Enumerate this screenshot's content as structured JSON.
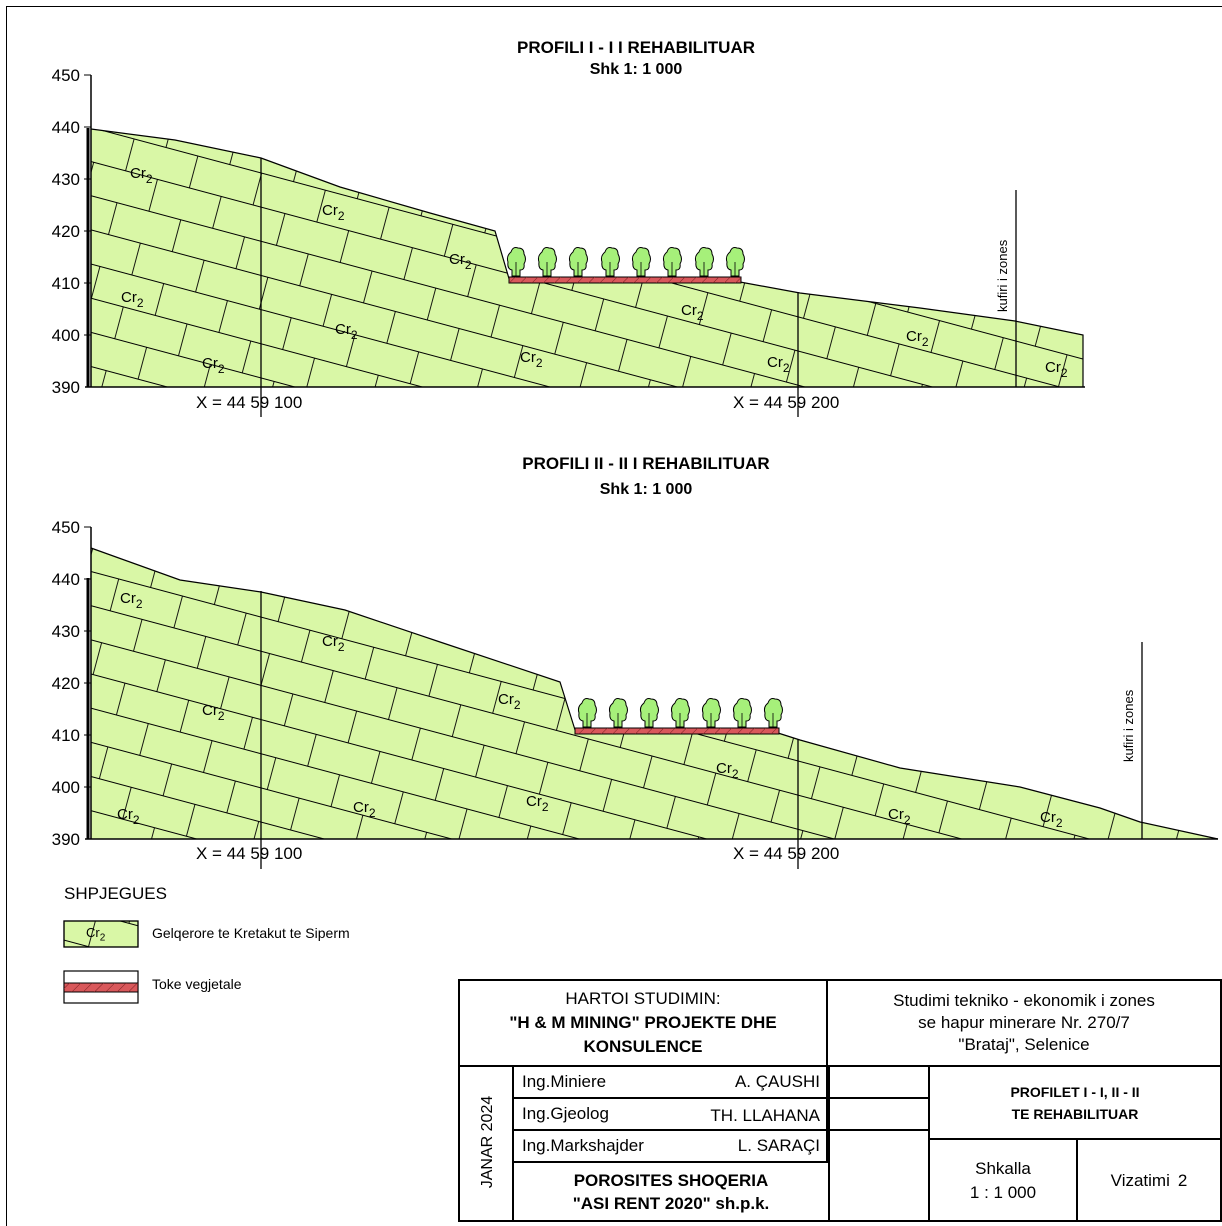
{
  "profiles": [
    {
      "title": "PROFILI I - I I REHABILITUAR",
      "scale": "Shk 1: 1 000",
      "y_ticks": [
        "450",
        "440",
        "430",
        "420",
        "410",
        "400",
        "390"
      ],
      "x_marks": [
        "X = 44 59 100",
        "X = 44 59 200"
      ],
      "zone_label": "kufiri i zones",
      "unit_labels": [
        "Cr2",
        "Cr2",
        "Cr2",
        "Cr2",
        "Cr2",
        "Cr2",
        "Cr2",
        "Cr2",
        "Cr2",
        "Cr2",
        "Cr2",
        "Cr2"
      ],
      "trees": 8
    },
    {
      "title": "PROFILI II - II I REHABILITUAR",
      "scale": "Shk 1: 1 000",
      "y_ticks": [
        "450",
        "440",
        "430",
        "420",
        "410",
        "400",
        "390"
      ],
      "x_marks": [
        "X = 44 59 100",
        "X = 44 59 200"
      ],
      "zone_label": "kufiri i zones",
      "unit_labels": [
        "Cr2",
        "Cr2",
        "Cr2",
        "Cr2",
        "Cr2",
        "Cr2",
        "Cr2",
        "Cr2",
        "Cr2",
        "Cr2",
        "Cr2"
      ],
      "trees": 7
    }
  ],
  "legend": {
    "title": "SHPJEGUES",
    "items": [
      {
        "swatch_label": "Cr2",
        "label": "Gelqerore te Kretakut te Siperm"
      },
      {
        "label": "Toke vegjetale"
      }
    ]
  },
  "title_block": {
    "author_heading": "HARTOI STUDIMIN:",
    "author_company_line1": "\"H & M MINING\" PROJEKTE DHE",
    "author_company_line2": "KONSULENCE",
    "study_line1": "Studimi tekniko - ekonomik i zones",
    "study_line2": "se hapur minerare Nr. 270/7",
    "study_line3": "\"Brataj\", Selenice",
    "date": "JANAR 2024",
    "staff": [
      {
        "role": "Ing.Miniere",
        "name": "A. ÇAUSHI"
      },
      {
        "role": "Ing.Gjeolog",
        "name": "TH. LLAHANA"
      },
      {
        "role": "Ing.Markshajder",
        "name": "L. SARAÇI"
      }
    ],
    "client_line1": "POROSITES SHOQERIA",
    "client_line2": "\"ASI RENT 2020\" sh.p.k.",
    "drawing_title_line1": "PROFILET I - I, II - II",
    "drawing_title_line2": "TE REHABILITUAR",
    "scale_label": "Shkalla",
    "scale_value": "1 : 1 000",
    "drawing_label": "Vizatimi",
    "drawing_number": "2"
  },
  "colors": {
    "limestone_fill": "#d9f7a6",
    "topsoil_fill": "#d9585b",
    "tree_fill": "#a6f07a",
    "line": "#000000"
  }
}
